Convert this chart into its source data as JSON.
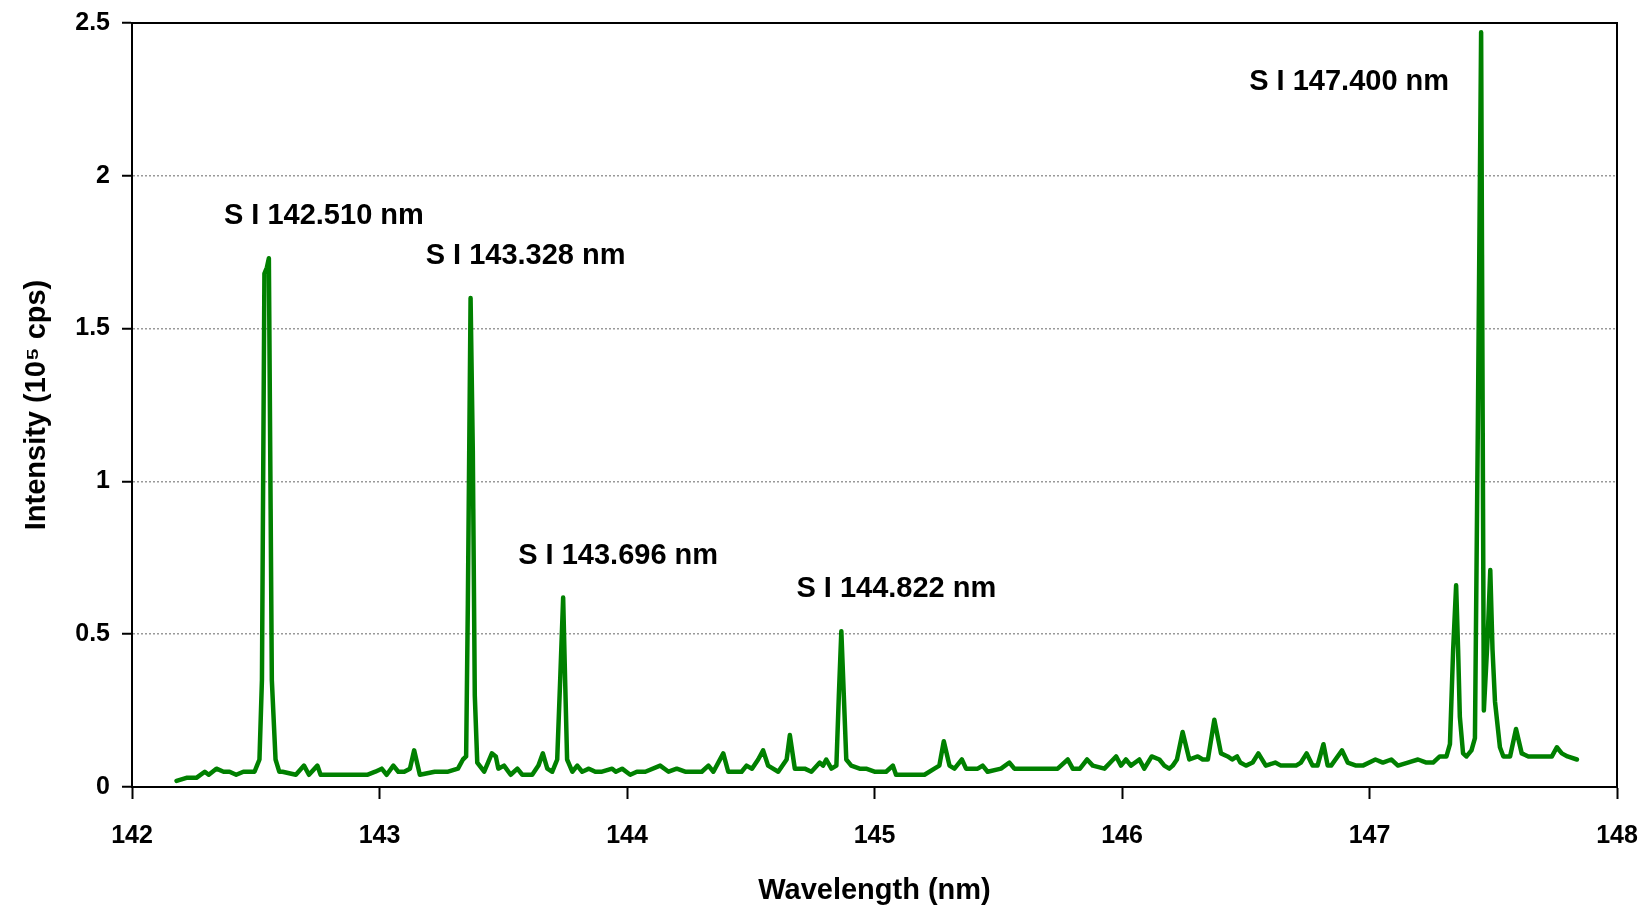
{
  "chart_data": {
    "type": "line",
    "xlabel": "Wavelength (nm)",
    "ylabel": "Intensity (10⁵ cps)",
    "xlim": [
      142,
      148
    ],
    "xticks": [
      142,
      143,
      144,
      145,
      146,
      147,
      148
    ],
    "ylim": [
      0,
      2.5
    ],
    "yticks": [
      0,
      0.5,
      1,
      1.5,
      2,
      2.5
    ],
    "grid": "y",
    "legend": false,
    "marker": "none",
    "line_style": "solid",
    "annotations": [
      {
        "text": "S I 142.510 nm",
        "x": 142.553,
        "y": 1.73
      },
      {
        "text": "S I 143.328 nm",
        "x": 143.368,
        "y": 1.6
      },
      {
        "text": "S I 143.696 nm",
        "x": 143.742,
        "y": 0.62
      },
      {
        "text": "S I 144.822 nm",
        "x": 144.866,
        "y": 0.51
      },
      {
        "text": "S I 147.400 nm",
        "x": 147.451,
        "y": 2.47
      }
    ],
    "series": [
      {
        "color": "#008000",
        "x": [
          142.18,
          142.22,
          142.26,
          142.294,
          142.31,
          142.341,
          142.37,
          142.394,
          142.421,
          142.45,
          142.495,
          142.515,
          142.525,
          142.535,
          142.545,
          142.553,
          142.565,
          142.58,
          142.595,
          142.608,
          142.662,
          142.695,
          142.715,
          142.749,
          142.762,
          142.82,
          142.889,
          142.95,
          142.983,
          143.009,
          143.029,
          143.056,
          143.076,
          143.1,
          143.123,
          143.14,
          143.163,
          143.223,
          143.277,
          143.317,
          143.337,
          143.35,
          143.357,
          143.368,
          143.377,
          143.385,
          143.395,
          143.423,
          143.454,
          143.47,
          143.48,
          143.503,
          143.53,
          143.557,
          143.577,
          143.617,
          143.642,
          143.66,
          143.678,
          143.698,
          143.718,
          143.73,
          143.742,
          143.75,
          143.758,
          143.779,
          143.799,
          143.819,
          143.846,
          143.872,
          143.899,
          143.94,
          143.955,
          143.98,
          144.013,
          144.04,
          144.074,
          144.134,
          144.168,
          144.201,
          144.235,
          144.302,
          144.329,
          144.349,
          144.389,
          144.409,
          144.463,
          144.483,
          144.505,
          144.53,
          144.55,
          144.57,
          144.611,
          144.645,
          144.658,
          144.678,
          144.718,
          144.745,
          144.779,
          144.792,
          144.805,
          144.826,
          144.846,
          144.856,
          144.866,
          144.876,
          144.886,
          144.906,
          144.94,
          144.966,
          145.0,
          145.047,
          145.074,
          145.087,
          145.128,
          145.202,
          145.242,
          145.262,
          145.28,
          145.303,
          145.323,
          145.353,
          145.37,
          145.397,
          145.417,
          145.437,
          145.457,
          145.511,
          145.545,
          145.565,
          145.59,
          145.66,
          145.713,
          145.74,
          145.781,
          145.801,
          145.83,
          145.859,
          145.882,
          145.929,
          145.976,
          145.996,
          146.016,
          146.036,
          146.07,
          146.09,
          146.12,
          146.151,
          146.171,
          146.191,
          146.205,
          146.222,
          146.245,
          146.272,
          146.306,
          146.326,
          146.347,
          146.373,
          146.4,
          146.427,
          146.445,
          146.465,
          146.478,
          146.501,
          146.528,
          146.551,
          146.581,
          146.619,
          146.642,
          146.703,
          146.723,
          146.746,
          146.77,
          146.79,
          146.814,
          146.831,
          146.845,
          146.889,
          146.912,
          146.946,
          146.973,
          147.024,
          147.054,
          147.088,
          147.115,
          147.155,
          147.196,
          147.23,
          147.257,
          147.284,
          147.311,
          147.325,
          147.338,
          147.35,
          147.358,
          147.365,
          147.378,
          147.392,
          147.412,
          147.426,
          147.438,
          147.451,
          147.462,
          147.478,
          147.488,
          147.497,
          147.507,
          147.527,
          147.541,
          147.568,
          147.592,
          147.615,
          147.642,
          147.676,
          147.69,
          147.716,
          147.737,
          147.757,
          147.777,
          147.8,
          147.838
        ],
        "values": [
          0.02,
          0.03,
          0.03,
          0.05,
          0.04,
          0.06,
          0.05,
          0.05,
          0.04,
          0.05,
          0.05,
          0.09,
          0.35,
          1.68,
          1.7,
          1.73,
          0.35,
          0.09,
          0.05,
          0.05,
          0.04,
          0.07,
          0.04,
          0.07,
          0.04,
          0.04,
          0.04,
          0.04,
          0.05,
          0.06,
          0.04,
          0.07,
          0.05,
          0.05,
          0.06,
          0.12,
          0.04,
          0.05,
          0.05,
          0.06,
          0.09,
          0.1,
          0.6,
          1.6,
          1.1,
          0.3,
          0.08,
          0.05,
          0.11,
          0.1,
          0.06,
          0.07,
          0.04,
          0.06,
          0.04,
          0.04,
          0.07,
          0.11,
          0.06,
          0.05,
          0.09,
          0.35,
          0.62,
          0.35,
          0.09,
          0.05,
          0.07,
          0.05,
          0.06,
          0.05,
          0.05,
          0.06,
          0.05,
          0.06,
          0.04,
          0.05,
          0.05,
          0.07,
          0.05,
          0.06,
          0.05,
          0.05,
          0.07,
          0.05,
          0.11,
          0.05,
          0.05,
          0.07,
          0.06,
          0.09,
          0.12,
          0.07,
          0.05,
          0.09,
          0.17,
          0.06,
          0.06,
          0.05,
          0.08,
          0.07,
          0.09,
          0.06,
          0.07,
          0.3,
          0.51,
          0.3,
          0.09,
          0.07,
          0.06,
          0.06,
          0.05,
          0.05,
          0.07,
          0.04,
          0.04,
          0.04,
          0.06,
          0.07,
          0.15,
          0.07,
          0.06,
          0.09,
          0.06,
          0.06,
          0.06,
          0.07,
          0.05,
          0.06,
          0.08,
          0.06,
          0.06,
          0.06,
          0.06,
          0.06,
          0.09,
          0.06,
          0.06,
          0.09,
          0.07,
          0.06,
          0.1,
          0.07,
          0.09,
          0.07,
          0.09,
          0.06,
          0.1,
          0.09,
          0.07,
          0.06,
          0.07,
          0.09,
          0.18,
          0.09,
          0.1,
          0.09,
          0.09,
          0.22,
          0.11,
          0.1,
          0.09,
          0.1,
          0.08,
          0.07,
          0.08,
          0.11,
          0.07,
          0.08,
          0.07,
          0.07,
          0.08,
          0.11,
          0.07,
          0.07,
          0.14,
          0.07,
          0.07,
          0.12,
          0.08,
          0.07,
          0.07,
          0.09,
          0.08,
          0.09,
          0.07,
          0.08,
          0.09,
          0.08,
          0.08,
          0.1,
          0.1,
          0.14,
          0.45,
          0.66,
          0.45,
          0.23,
          0.11,
          0.1,
          0.12,
          0.16,
          1.2,
          2.47,
          0.25,
          0.5,
          0.71,
          0.45,
          0.28,
          0.13,
          0.1,
          0.1,
          0.19,
          0.11,
          0.1,
          0.1,
          0.1,
          0.1,
          0.1,
          0.13,
          0.11,
          0.1,
          0.09
        ]
      }
    ]
  }
}
